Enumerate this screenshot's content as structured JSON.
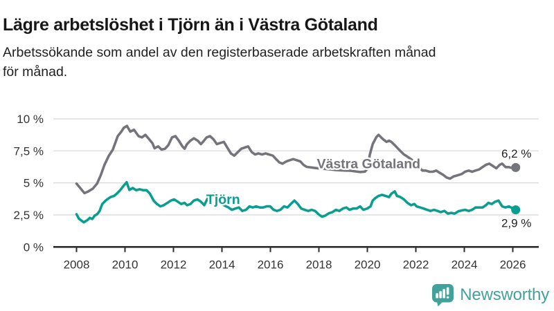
{
  "page": {
    "title": "Lägre arbetslöshet i Tjörn än i Västra Götaland",
    "subtitle_lines": [
      "Arbetssökande som andel av den registerbaserade arbetskraften månad",
      "för månad."
    ]
  },
  "colors": {
    "title_color": "#171717",
    "text_color": "#1f1f1f",
    "axis_text": "#333333",
    "axis_color": "#2e2e2e",
    "grid_color": "#d8d8d8",
    "series_gray": "#74747c",
    "series_teal": "#0a9e90",
    "logo_teal": "#42a29b"
  },
  "branding": {
    "logo_text": "Newsworthy",
    "logo_icon": "speech-bubble-bar-chart-icon"
  },
  "chart_data": {
    "type": "line",
    "title": "Lägre arbetslöshet i Tjörn än i Västra Götaland",
    "xlabel": "",
    "ylabel": "",
    "x_unit": "decimal_year",
    "y_unit": "percent_of_labour_force",
    "xlim": [
      2007.0,
      2027.2
    ],
    "ylim": [
      0,
      10
    ],
    "grid": "horizontal",
    "legend": "inline-labels",
    "yticks": [
      {
        "value": 10,
        "label": "10 %"
      },
      {
        "value": 7.5,
        "label": "7,5 %"
      },
      {
        "value": 5,
        "label": "5 %"
      },
      {
        "value": 2.5,
        "label": "2,5 %"
      },
      {
        "value": 0,
        "label": "0 %"
      }
    ],
    "xticks": [
      {
        "value": 2008,
        "label": "2008"
      },
      {
        "value": 2010,
        "label": "2010"
      },
      {
        "value": 2012,
        "label": "2012"
      },
      {
        "value": 2014,
        "label": "2014"
      },
      {
        "value": 2016,
        "label": "2016"
      },
      {
        "value": 2018,
        "label": "2018"
      },
      {
        "value": 2020,
        "label": "2020"
      },
      {
        "value": 2022,
        "label": "2022"
      },
      {
        "value": 2024,
        "label": "2024"
      },
      {
        "value": 2026,
        "label": "2026"
      }
    ],
    "series": [
      {
        "name": "Västra Götaland",
        "color_key": "series_gray",
        "color": "#74747c",
        "end_value": 6.2,
        "end_label": "6,2 %",
        "end_label_side": "above",
        "label_pos": {
          "x": 2020.05,
          "y": 6.15
        },
        "points": [
          [
            2008.0,
            4.95
          ],
          [
            2008.15,
            4.6
          ],
          [
            2008.33,
            4.2
          ],
          [
            2008.5,
            4.35
          ],
          [
            2008.67,
            4.55
          ],
          [
            2008.85,
            4.95
          ],
          [
            2009.0,
            5.6
          ],
          [
            2009.15,
            6.4
          ],
          [
            2009.33,
            7.1
          ],
          [
            2009.5,
            7.6
          ],
          [
            2009.7,
            8.65
          ],
          [
            2009.85,
            9.0
          ],
          [
            2009.95,
            9.3
          ],
          [
            2010.08,
            9.45
          ],
          [
            2010.22,
            9.0
          ],
          [
            2010.37,
            9.15
          ],
          [
            2010.56,
            8.65
          ],
          [
            2010.7,
            8.55
          ],
          [
            2010.84,
            8.75
          ],
          [
            2011.0,
            8.4
          ],
          [
            2011.13,
            8.1
          ],
          [
            2011.22,
            7.7
          ],
          [
            2011.37,
            7.85
          ],
          [
            2011.51,
            7.6
          ],
          [
            2011.65,
            7.67
          ],
          [
            2011.79,
            7.95
          ],
          [
            2011.94,
            8.55
          ],
          [
            2012.08,
            8.65
          ],
          [
            2012.22,
            8.3
          ],
          [
            2012.37,
            7.85
          ],
          [
            2012.46,
            7.67
          ],
          [
            2012.56,
            8.03
          ],
          [
            2012.7,
            8.3
          ],
          [
            2012.84,
            8.48
          ],
          [
            2013.0,
            8.3
          ],
          [
            2013.13,
            8.03
          ],
          [
            2013.22,
            8.2
          ],
          [
            2013.37,
            8.55
          ],
          [
            2013.51,
            8.65
          ],
          [
            2013.65,
            8.4
          ],
          [
            2013.79,
            8.03
          ],
          [
            2013.94,
            8.12
          ],
          [
            2014.08,
            8.2
          ],
          [
            2014.22,
            7.76
          ],
          [
            2014.37,
            7.3
          ],
          [
            2014.51,
            7.13
          ],
          [
            2014.65,
            7.4
          ],
          [
            2014.8,
            7.67
          ],
          [
            2014.94,
            7.76
          ],
          [
            2015.08,
            7.85
          ],
          [
            2015.23,
            7.4
          ],
          [
            2015.37,
            7.22
          ],
          [
            2015.5,
            7.3
          ],
          [
            2015.66,
            7.22
          ],
          [
            2015.8,
            7.3
          ],
          [
            2015.94,
            7.22
          ],
          [
            2016.1,
            7.13
          ],
          [
            2016.23,
            6.86
          ],
          [
            2016.37,
            6.6
          ],
          [
            2016.5,
            6.5
          ],
          [
            2016.66,
            6.68
          ],
          [
            2016.8,
            6.77
          ],
          [
            2016.94,
            6.86
          ],
          [
            2017.08,
            6.77
          ],
          [
            2017.23,
            6.68
          ],
          [
            2017.37,
            6.4
          ],
          [
            2017.5,
            6.25
          ],
          [
            2017.7,
            6.2
          ],
          [
            2017.9,
            6.15
          ],
          [
            2018.1,
            6.12
          ],
          [
            2018.3,
            6.08
          ],
          [
            2018.5,
            6.05
          ],
          [
            2018.7,
            6.0
          ],
          [
            2018.9,
            5.98
          ],
          [
            2019.1,
            5.96
          ],
          [
            2019.3,
            5.95
          ],
          [
            2019.5,
            5.9
          ],
          [
            2019.7,
            5.85
          ],
          [
            2019.9,
            5.88
          ],
          [
            2020.0,
            6.1
          ],
          [
            2020.1,
            7.2
          ],
          [
            2020.22,
            8.03
          ],
          [
            2020.37,
            8.57
          ],
          [
            2020.46,
            8.75
          ],
          [
            2020.56,
            8.57
          ],
          [
            2020.65,
            8.4
          ],
          [
            2020.79,
            8.2
          ],
          [
            2020.89,
            8.3
          ],
          [
            2020.99,
            8.2
          ],
          [
            2021.13,
            7.94
          ],
          [
            2021.27,
            7.67
          ],
          [
            2021.41,
            7.4
          ],
          [
            2021.51,
            7.22
          ],
          [
            2021.65,
            7.05
          ],
          [
            2021.8,
            6.85
          ],
          [
            2021.95,
            6.6
          ],
          [
            2022.1,
            6.3
          ],
          [
            2022.27,
            5.96
          ],
          [
            2022.41,
            5.96
          ],
          [
            2022.56,
            5.87
          ],
          [
            2022.7,
            5.87
          ],
          [
            2022.84,
            5.96
          ],
          [
            2022.99,
            5.78
          ],
          [
            2023.13,
            5.62
          ],
          [
            2023.27,
            5.42
          ],
          [
            2023.41,
            5.33
          ],
          [
            2023.56,
            5.51
          ],
          [
            2023.7,
            5.58
          ],
          [
            2023.89,
            5.69
          ],
          [
            2024.03,
            5.87
          ],
          [
            2024.18,
            5.96
          ],
          [
            2024.32,
            5.87
          ],
          [
            2024.46,
            5.96
          ],
          [
            2024.61,
            6.05
          ],
          [
            2024.75,
            6.23
          ],
          [
            2024.89,
            6.41
          ],
          [
            2025.03,
            6.5
          ],
          [
            2025.18,
            6.32
          ],
          [
            2025.32,
            6.14
          ],
          [
            2025.46,
            6.41
          ],
          [
            2025.56,
            6.5
          ],
          [
            2025.7,
            6.23
          ],
          [
            2025.84,
            6.23
          ],
          [
            2025.99,
            6.15
          ],
          [
            2026.12,
            6.2
          ]
        ]
      },
      {
        "name": "Tjörn",
        "color_key": "series_teal",
        "color": "#0a9e90",
        "end_value": 2.9,
        "end_label": "2,9 %",
        "end_label_side": "below",
        "label_pos": {
          "x": 2014.05,
          "y": 3.36
        },
        "points": [
          [
            2008.0,
            2.55
          ],
          [
            2008.1,
            2.2
          ],
          [
            2008.3,
            1.92
          ],
          [
            2008.45,
            2.1
          ],
          [
            2008.55,
            2.27
          ],
          [
            2008.65,
            2.18
          ],
          [
            2008.75,
            2.45
          ],
          [
            2008.85,
            2.55
          ],
          [
            2008.95,
            2.8
          ],
          [
            2009.06,
            3.35
          ],
          [
            2009.2,
            3.62
          ],
          [
            2009.4,
            3.89
          ],
          [
            2009.55,
            3.98
          ],
          [
            2009.66,
            4.16
          ],
          [
            2009.8,
            4.43
          ],
          [
            2009.93,
            4.75
          ],
          [
            2010.07,
            5.05
          ],
          [
            2010.18,
            4.45
          ],
          [
            2010.32,
            4.6
          ],
          [
            2010.46,
            4.43
          ],
          [
            2010.6,
            4.5
          ],
          [
            2010.75,
            4.43
          ],
          [
            2010.89,
            4.43
          ],
          [
            2011.03,
            4.16
          ],
          [
            2011.18,
            3.62
          ],
          [
            2011.32,
            3.35
          ],
          [
            2011.46,
            3.17
          ],
          [
            2011.6,
            3.26
          ],
          [
            2011.75,
            3.44
          ],
          [
            2011.89,
            3.62
          ],
          [
            2012.03,
            3.71
          ],
          [
            2012.18,
            3.53
          ],
          [
            2012.32,
            3.35
          ],
          [
            2012.46,
            3.44
          ],
          [
            2012.56,
            3.26
          ],
          [
            2012.7,
            3.35
          ],
          [
            2012.84,
            3.62
          ],
          [
            2012.99,
            3.71
          ],
          [
            2013.13,
            3.53
          ],
          [
            2013.27,
            3.26
          ],
          [
            2013.41,
            3.8
          ],
          [
            2013.56,
            4.07
          ],
          [
            2013.7,
            4.16
          ],
          [
            2013.84,
            3.98
          ],
          [
            2013.99,
            3.35
          ],
          [
            2014.08,
            3.26
          ],
          [
            2014.27,
            3.08
          ],
          [
            2014.41,
            2.9
          ],
          [
            2014.56,
            3.0
          ],
          [
            2014.7,
            3.08
          ],
          [
            2014.84,
            2.81
          ],
          [
            2014.99,
            2.9
          ],
          [
            2015.13,
            3.17
          ],
          [
            2015.27,
            3.08
          ],
          [
            2015.41,
            3.17
          ],
          [
            2015.56,
            3.08
          ],
          [
            2015.7,
            3.08
          ],
          [
            2015.84,
            3.17
          ],
          [
            2015.99,
            3.17
          ],
          [
            2016.13,
            2.9
          ],
          [
            2016.27,
            2.81
          ],
          [
            2016.41,
            2.9
          ],
          [
            2016.56,
            3.17
          ],
          [
            2016.7,
            3.08
          ],
          [
            2016.84,
            3.35
          ],
          [
            2016.99,
            3.62
          ],
          [
            2017.13,
            3.35
          ],
          [
            2017.27,
            3.0
          ],
          [
            2017.41,
            2.9
          ],
          [
            2017.56,
            2.81
          ],
          [
            2017.7,
            2.9
          ],
          [
            2017.84,
            2.81
          ],
          [
            2017.99,
            2.54
          ],
          [
            2018.13,
            2.36
          ],
          [
            2018.27,
            2.45
          ],
          [
            2018.41,
            2.63
          ],
          [
            2018.56,
            2.72
          ],
          [
            2018.7,
            2.9
          ],
          [
            2018.84,
            2.81
          ],
          [
            2018.99,
            3.0
          ],
          [
            2019.13,
            3.08
          ],
          [
            2019.27,
            2.9
          ],
          [
            2019.41,
            3.0
          ],
          [
            2019.56,
            3.0
          ],
          [
            2019.7,
            3.17
          ],
          [
            2019.84,
            2.9
          ],
          [
            2019.99,
            3.0
          ],
          [
            2020.13,
            3.17
          ],
          [
            2020.22,
            3.62
          ],
          [
            2020.32,
            3.8
          ],
          [
            2020.46,
            3.98
          ],
          [
            2020.6,
            4.07
          ],
          [
            2020.75,
            3.98
          ],
          [
            2020.89,
            3.89
          ],
          [
            2020.99,
            4.16
          ],
          [
            2021.13,
            4.34
          ],
          [
            2021.22,
            3.98
          ],
          [
            2021.37,
            3.89
          ],
          [
            2021.51,
            3.71
          ],
          [
            2021.65,
            3.44
          ],
          [
            2021.8,
            3.26
          ],
          [
            2021.94,
            3.35
          ],
          [
            2022.03,
            3.17
          ],
          [
            2022.18,
            3.08
          ],
          [
            2022.32,
            3.0
          ],
          [
            2022.46,
            2.9
          ],
          [
            2022.6,
            2.81
          ],
          [
            2022.75,
            2.9
          ],
          [
            2022.89,
            2.81
          ],
          [
            2023.03,
            2.72
          ],
          [
            2023.18,
            2.81
          ],
          [
            2023.32,
            2.6
          ],
          [
            2023.46,
            2.66
          ],
          [
            2023.6,
            2.6
          ],
          [
            2023.75,
            2.78
          ],
          [
            2023.89,
            2.85
          ],
          [
            2024.03,
            2.9
          ],
          [
            2024.18,
            2.81
          ],
          [
            2024.32,
            2.9
          ],
          [
            2024.46,
            3.08
          ],
          [
            2024.61,
            3.08
          ],
          [
            2024.75,
            3.08
          ],
          [
            2024.89,
            3.26
          ],
          [
            2024.99,
            3.44
          ],
          [
            2025.13,
            3.35
          ],
          [
            2025.27,
            3.53
          ],
          [
            2025.41,
            3.62
          ],
          [
            2025.56,
            3.17
          ],
          [
            2025.7,
            3.08
          ],
          [
            2025.84,
            3.17
          ],
          [
            2025.99,
            3.0
          ],
          [
            2026.12,
            2.9
          ]
        ]
      }
    ]
  }
}
